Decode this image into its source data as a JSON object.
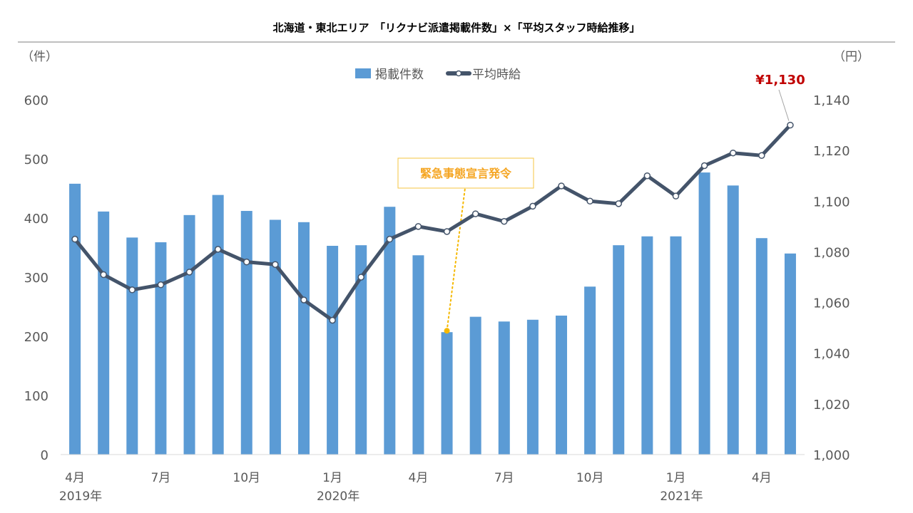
{
  "chart_data": {
    "type": "bar+line",
    "title": "北海道・東北エリア　「リクナビ派遣掲載件数」×「平均スタッフ時給推移」",
    "left_unit": "（件）",
    "right_unit": "（円）",
    "left_ylim": [
      0,
      600
    ],
    "left_ticks": [
      "0",
      "100",
      "200",
      "300",
      "400",
      "500",
      "600"
    ],
    "right_ylim": [
      1000,
      1140
    ],
    "right_ticks": [
      "1,000",
      "1,020",
      "1,040",
      "1,060",
      "1,080",
      "1,100",
      "1,120",
      "1,140"
    ],
    "months": [
      "2019-04",
      "2019-05",
      "2019-06",
      "2019-07",
      "2019-08",
      "2019-09",
      "2019-10",
      "2019-11",
      "2019-12",
      "2020-01",
      "2020-02",
      "2020-03",
      "2020-04",
      "2020-05",
      "2020-06",
      "2020-07",
      "2020-08",
      "2020-09",
      "2020-10",
      "2020-11",
      "2020-12",
      "2021-01",
      "2021-02",
      "2021-03",
      "2021-04",
      "2021-05"
    ],
    "x_tick_labels": [
      {
        "index": 0,
        "month": "4月",
        "year": "2019年"
      },
      {
        "index": 3,
        "month": "7月",
        "year": ""
      },
      {
        "index": 6,
        "month": "10月",
        "year": ""
      },
      {
        "index": 9,
        "month": "1月",
        "year": "2020年"
      },
      {
        "index": 12,
        "month": "4月",
        "year": ""
      },
      {
        "index": 15,
        "month": "7月",
        "year": ""
      },
      {
        "index": 18,
        "month": "10月",
        "year": ""
      },
      {
        "index": 21,
        "month": "1月",
        "year": "2021年"
      },
      {
        "index": 24,
        "month": "4月",
        "year": ""
      }
    ],
    "series": [
      {
        "name": "掲載件数",
        "type": "bar",
        "axis": "left",
        "color": "#5b9bd5",
        "values": [
          458,
          411,
          367,
          359,
          405,
          439,
          412,
          397,
          393,
          353,
          354,
          419,
          337,
          207,
          233,
          225,
          228,
          235,
          284,
          354,
          369,
          369,
          477,
          455,
          366,
          340
        ]
      },
      {
        "name": "平均時給",
        "type": "line",
        "axis": "right",
        "color": "#44546a",
        "values": [
          1085,
          1071,
          1065,
          1067,
          1072,
          1081,
          1076,
          1075,
          1061,
          1053,
          1070,
          1085,
          1090,
          1088,
          1095,
          1092,
          1098,
          1106,
          1100,
          1099,
          1110,
          1102,
          1114,
          1119,
          1118,
          1130
        ]
      }
    ],
    "annotations": [
      {
        "text": "¥1,130",
        "series": "平均時給",
        "index": 25,
        "color": "#c00000"
      },
      {
        "text": "緊急事態宣言発令",
        "series": "掲載件数",
        "index": 13,
        "color": "#f5a623"
      }
    ],
    "legend": "top-center",
    "grid": false
  }
}
